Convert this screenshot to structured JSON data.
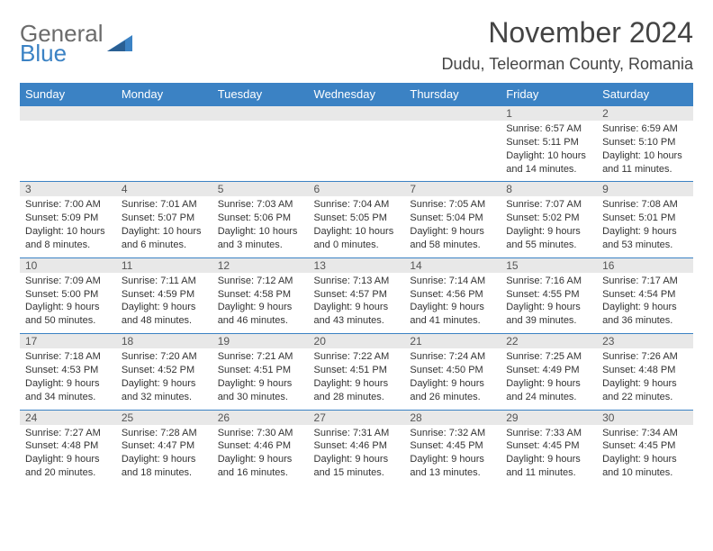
{
  "logo": {
    "line1": "General",
    "line2": "Blue"
  },
  "title": "November 2024",
  "location": "Dudu, Teleorman County, Romania",
  "colors": {
    "accent": "#3b82c4",
    "grayBg": "#e8e8e8",
    "text": "#333333"
  },
  "dayHeaders": [
    "Sunday",
    "Monday",
    "Tuesday",
    "Wednesday",
    "Thursday",
    "Friday",
    "Saturday"
  ],
  "weeks": [
    [
      null,
      null,
      null,
      null,
      null,
      {
        "n": "1",
        "sr": "Sunrise: 6:57 AM",
        "ss": "Sunset: 5:11 PM",
        "dl1": "Daylight: 10 hours",
        "dl2": "and 14 minutes."
      },
      {
        "n": "2",
        "sr": "Sunrise: 6:59 AM",
        "ss": "Sunset: 5:10 PM",
        "dl1": "Daylight: 10 hours",
        "dl2": "and 11 minutes."
      }
    ],
    [
      {
        "n": "3",
        "sr": "Sunrise: 7:00 AM",
        "ss": "Sunset: 5:09 PM",
        "dl1": "Daylight: 10 hours",
        "dl2": "and 8 minutes."
      },
      {
        "n": "4",
        "sr": "Sunrise: 7:01 AM",
        "ss": "Sunset: 5:07 PM",
        "dl1": "Daylight: 10 hours",
        "dl2": "and 6 minutes."
      },
      {
        "n": "5",
        "sr": "Sunrise: 7:03 AM",
        "ss": "Sunset: 5:06 PM",
        "dl1": "Daylight: 10 hours",
        "dl2": "and 3 minutes."
      },
      {
        "n": "6",
        "sr": "Sunrise: 7:04 AM",
        "ss": "Sunset: 5:05 PM",
        "dl1": "Daylight: 10 hours",
        "dl2": "and 0 minutes."
      },
      {
        "n": "7",
        "sr": "Sunrise: 7:05 AM",
        "ss": "Sunset: 5:04 PM",
        "dl1": "Daylight: 9 hours",
        "dl2": "and 58 minutes."
      },
      {
        "n": "8",
        "sr": "Sunrise: 7:07 AM",
        "ss": "Sunset: 5:02 PM",
        "dl1": "Daylight: 9 hours",
        "dl2": "and 55 minutes."
      },
      {
        "n": "9",
        "sr": "Sunrise: 7:08 AM",
        "ss": "Sunset: 5:01 PM",
        "dl1": "Daylight: 9 hours",
        "dl2": "and 53 minutes."
      }
    ],
    [
      {
        "n": "10",
        "sr": "Sunrise: 7:09 AM",
        "ss": "Sunset: 5:00 PM",
        "dl1": "Daylight: 9 hours",
        "dl2": "and 50 minutes."
      },
      {
        "n": "11",
        "sr": "Sunrise: 7:11 AM",
        "ss": "Sunset: 4:59 PM",
        "dl1": "Daylight: 9 hours",
        "dl2": "and 48 minutes."
      },
      {
        "n": "12",
        "sr": "Sunrise: 7:12 AM",
        "ss": "Sunset: 4:58 PM",
        "dl1": "Daylight: 9 hours",
        "dl2": "and 46 minutes."
      },
      {
        "n": "13",
        "sr": "Sunrise: 7:13 AM",
        "ss": "Sunset: 4:57 PM",
        "dl1": "Daylight: 9 hours",
        "dl2": "and 43 minutes."
      },
      {
        "n": "14",
        "sr": "Sunrise: 7:14 AM",
        "ss": "Sunset: 4:56 PM",
        "dl1": "Daylight: 9 hours",
        "dl2": "and 41 minutes."
      },
      {
        "n": "15",
        "sr": "Sunrise: 7:16 AM",
        "ss": "Sunset: 4:55 PM",
        "dl1": "Daylight: 9 hours",
        "dl2": "and 39 minutes."
      },
      {
        "n": "16",
        "sr": "Sunrise: 7:17 AM",
        "ss": "Sunset: 4:54 PM",
        "dl1": "Daylight: 9 hours",
        "dl2": "and 36 minutes."
      }
    ],
    [
      {
        "n": "17",
        "sr": "Sunrise: 7:18 AM",
        "ss": "Sunset: 4:53 PM",
        "dl1": "Daylight: 9 hours",
        "dl2": "and 34 minutes."
      },
      {
        "n": "18",
        "sr": "Sunrise: 7:20 AM",
        "ss": "Sunset: 4:52 PM",
        "dl1": "Daylight: 9 hours",
        "dl2": "and 32 minutes."
      },
      {
        "n": "19",
        "sr": "Sunrise: 7:21 AM",
        "ss": "Sunset: 4:51 PM",
        "dl1": "Daylight: 9 hours",
        "dl2": "and 30 minutes."
      },
      {
        "n": "20",
        "sr": "Sunrise: 7:22 AM",
        "ss": "Sunset: 4:51 PM",
        "dl1": "Daylight: 9 hours",
        "dl2": "and 28 minutes."
      },
      {
        "n": "21",
        "sr": "Sunrise: 7:24 AM",
        "ss": "Sunset: 4:50 PM",
        "dl1": "Daylight: 9 hours",
        "dl2": "and 26 minutes."
      },
      {
        "n": "22",
        "sr": "Sunrise: 7:25 AM",
        "ss": "Sunset: 4:49 PM",
        "dl1": "Daylight: 9 hours",
        "dl2": "and 24 minutes."
      },
      {
        "n": "23",
        "sr": "Sunrise: 7:26 AM",
        "ss": "Sunset: 4:48 PM",
        "dl1": "Daylight: 9 hours",
        "dl2": "and 22 minutes."
      }
    ],
    [
      {
        "n": "24",
        "sr": "Sunrise: 7:27 AM",
        "ss": "Sunset: 4:48 PM",
        "dl1": "Daylight: 9 hours",
        "dl2": "and 20 minutes."
      },
      {
        "n": "25",
        "sr": "Sunrise: 7:28 AM",
        "ss": "Sunset: 4:47 PM",
        "dl1": "Daylight: 9 hours",
        "dl2": "and 18 minutes."
      },
      {
        "n": "26",
        "sr": "Sunrise: 7:30 AM",
        "ss": "Sunset: 4:46 PM",
        "dl1": "Daylight: 9 hours",
        "dl2": "and 16 minutes."
      },
      {
        "n": "27",
        "sr": "Sunrise: 7:31 AM",
        "ss": "Sunset: 4:46 PM",
        "dl1": "Daylight: 9 hours",
        "dl2": "and 15 minutes."
      },
      {
        "n": "28",
        "sr": "Sunrise: 7:32 AM",
        "ss": "Sunset: 4:45 PM",
        "dl1": "Daylight: 9 hours",
        "dl2": "and 13 minutes."
      },
      {
        "n": "29",
        "sr": "Sunrise: 7:33 AM",
        "ss": "Sunset: 4:45 PM",
        "dl1": "Daylight: 9 hours",
        "dl2": "and 11 minutes."
      },
      {
        "n": "30",
        "sr": "Sunrise: 7:34 AM",
        "ss": "Sunset: 4:45 PM",
        "dl1": "Daylight: 9 hours",
        "dl2": "and 10 minutes."
      }
    ]
  ]
}
